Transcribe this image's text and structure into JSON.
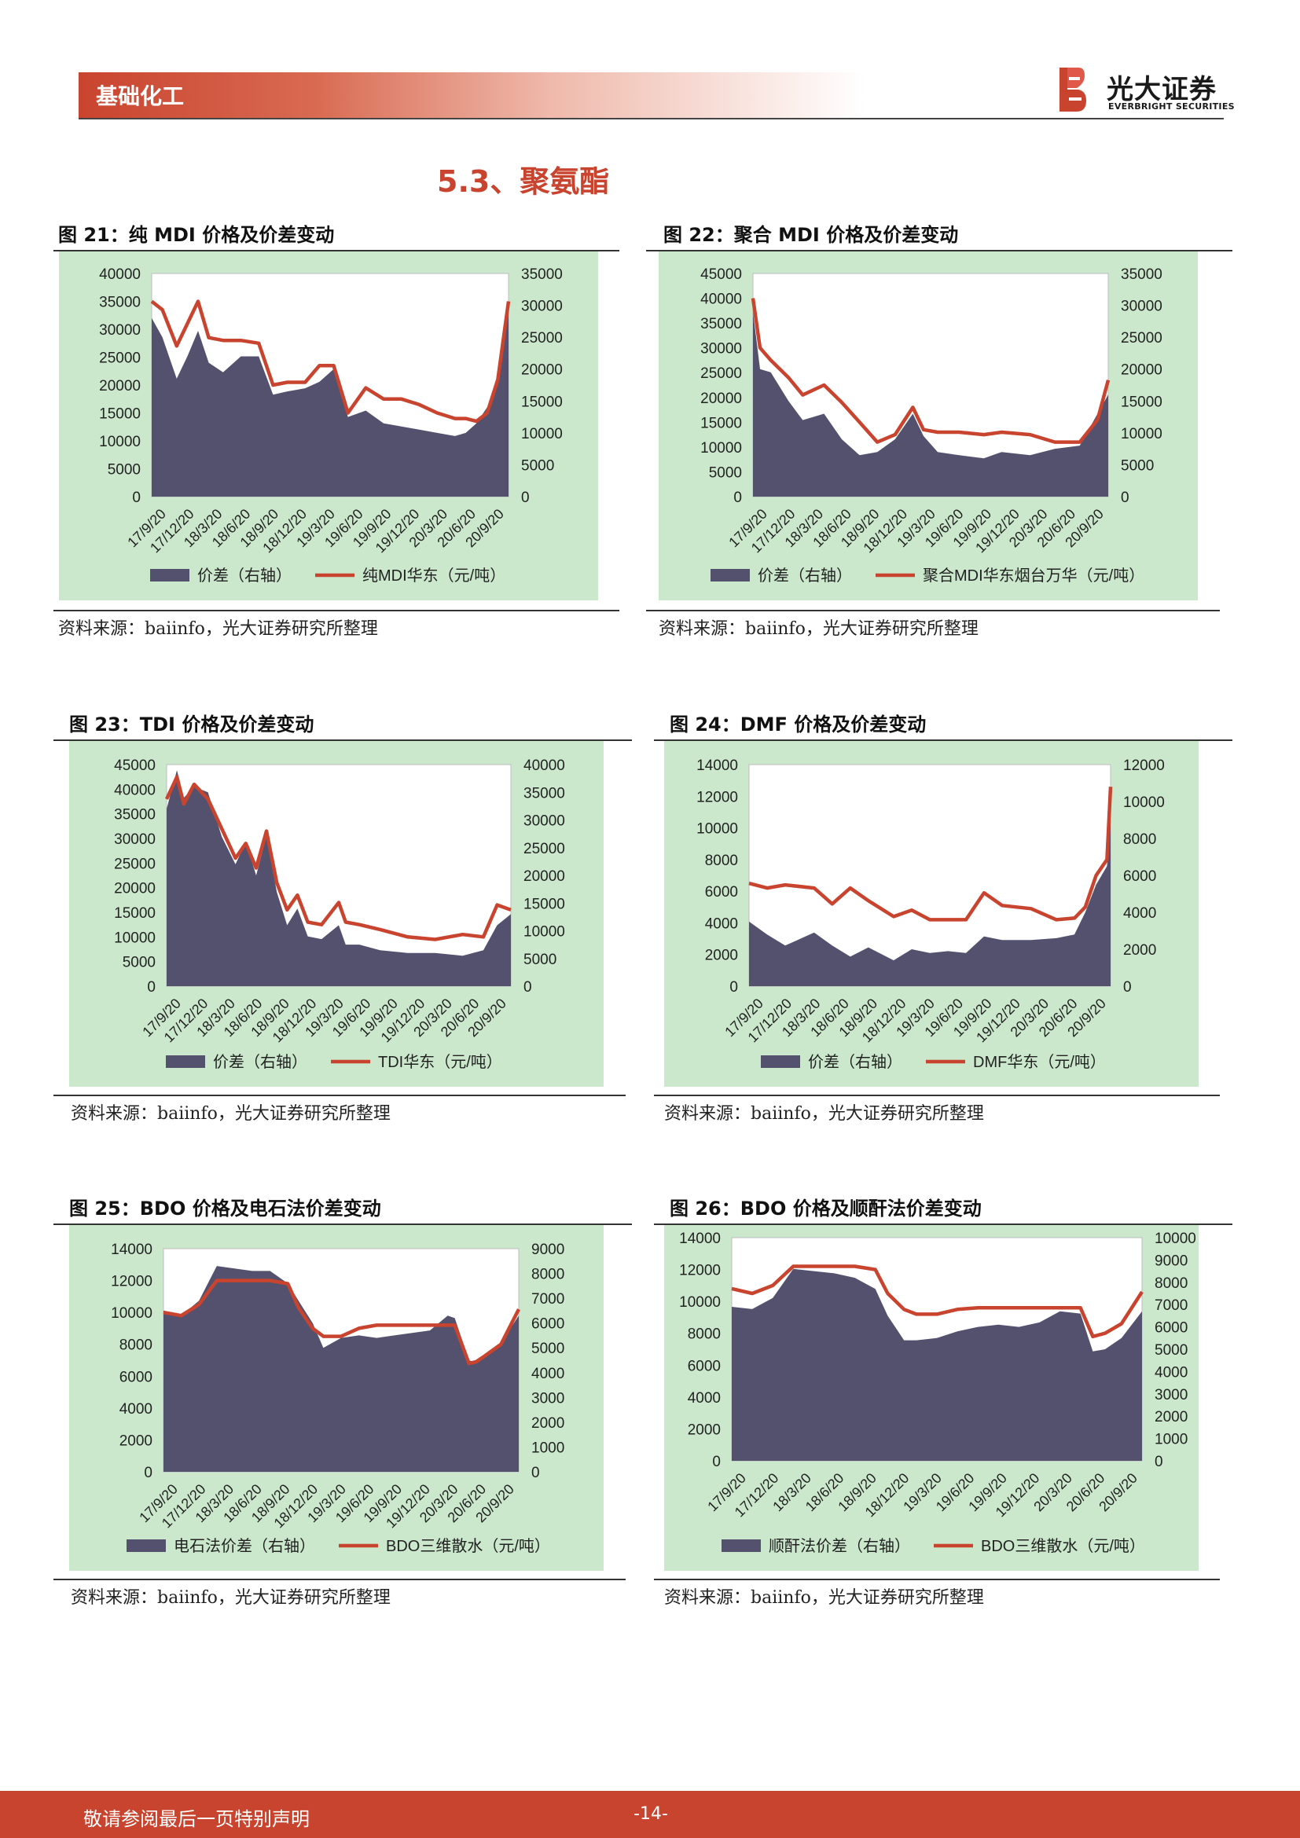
{
  "header": {
    "section": "基础化工",
    "brand_cn": "光大证券",
    "brand_en": "EVERBRIGHT SECURITIES"
  },
  "section_title": "5.3、聚氨酯",
  "source_text": "资料来源：baiinfo，光大证券研究所整理",
  "footer": {
    "disclaimer": "敬请参阅最后一页特别声明",
    "page": "-14-"
  },
  "colors": {
    "area": "#54516e",
    "line": "#c9442f",
    "panel": "#cbe8cd",
    "accent": "#c9442f"
  },
  "chart_data": [
    {
      "id": "fig21",
      "type": "area+line",
      "title": "图 21：纯 MDI 价格及价差变动",
      "x_ticks": [
        "17/9/20",
        "17/12/20",
        "18/3/20",
        "18/6/20",
        "18/9/20",
        "18/12/20",
        "19/3/20",
        "19/6/20",
        "19/9/20",
        "19/12/20",
        "20/3/20",
        "20/6/20",
        "20/9/20"
      ],
      "left_axis": {
        "ticks": [
          "0",
          "5000",
          "10000",
          "15000",
          "20000",
          "25000",
          "30000",
          "35000",
          "40000"
        ],
        "min": 0,
        "max": 40000
      },
      "right_axis": {
        "ticks": [
          "0",
          "5000",
          "10000",
          "15000",
          "20000",
          "25000",
          "30000",
          "35000"
        ],
        "min": 0,
        "max": 35000
      },
      "series": [
        {
          "name": "价差（右轴）",
          "axis": "right",
          "kind": "area",
          "t": [
            0,
            0.03,
            0.07,
            0.1,
            0.13,
            0.16,
            0.2,
            0.25,
            0.3,
            0.34,
            0.38,
            0.43,
            0.47,
            0.51,
            0.55,
            0.6,
            0.65,
            0.7,
            0.75,
            0.8,
            0.85,
            0.88,
            0.91,
            0.94,
            0.97,
            1.0
          ],
          "values": [
            28000,
            25000,
            18500,
            22000,
            26000,
            21000,
            19500,
            22000,
            22000,
            16000,
            16500,
            17000,
            18000,
            20000,
            12500,
            13500,
            11500,
            11000,
            10500,
            10000,
            9500,
            10000,
            11500,
            14000,
            18000,
            30000
          ]
        },
        {
          "name": "纯MDI华东（元/吨）",
          "axis": "left",
          "kind": "line",
          "t": [
            0,
            0.03,
            0.07,
            0.1,
            0.13,
            0.16,
            0.2,
            0.25,
            0.3,
            0.34,
            0.38,
            0.43,
            0.47,
            0.51,
            0.55,
            0.6,
            0.65,
            0.7,
            0.75,
            0.8,
            0.85,
            0.88,
            0.91,
            0.94,
            0.97,
            1.0
          ],
          "values": [
            35000,
            33500,
            27000,
            31000,
            35000,
            28500,
            28000,
            28000,
            27500,
            20000,
            20500,
            20500,
            23500,
            23500,
            15000,
            19500,
            17500,
            17500,
            16500,
            15000,
            14000,
            14000,
            13500,
            15000,
            21000,
            35000
          ]
        }
      ]
    },
    {
      "id": "fig22",
      "type": "area+line",
      "title": "图 22：聚合 MDI 价格及价差变动",
      "x_ticks": [
        "17/9/20",
        "17/12/20",
        "18/3/20",
        "18/6/20",
        "18/9/20",
        "18/12/20",
        "19/3/20",
        "19/6/20",
        "19/9/20",
        "19/12/20",
        "20/3/20",
        "20/6/20",
        "20/9/20"
      ],
      "left_axis": {
        "ticks": [
          "0",
          "5000",
          "10000",
          "15000",
          "20000",
          "25000",
          "30000",
          "35000",
          "40000",
          "45000"
        ],
        "min": 0,
        "max": 45000
      },
      "right_axis": {
        "ticks": [
          "0",
          "5000",
          "10000",
          "15000",
          "20000",
          "25000",
          "30000",
          "35000"
        ],
        "min": 0,
        "max": 35000
      },
      "series": [
        {
          "name": "价差（右轴）",
          "axis": "right",
          "kind": "area",
          "t": [
            0,
            0.02,
            0.05,
            0.1,
            0.14,
            0.2,
            0.25,
            0.3,
            0.35,
            0.4,
            0.45,
            0.48,
            0.52,
            0.58,
            0.65,
            0.7,
            0.78,
            0.85,
            0.92,
            0.97,
            1.0
          ],
          "values": [
            29000,
            20000,
            19500,
            15000,
            12000,
            13000,
            9000,
            6500,
            7000,
            9000,
            13000,
            9500,
            7000,
            6500,
            6000,
            7000,
            6500,
            7500,
            8000,
            13000,
            16000
          ]
        },
        {
          "name": "聚合MDI华东烟台万华（元/吨）",
          "axis": "left",
          "kind": "line",
          "t": [
            0,
            0.02,
            0.05,
            0.1,
            0.14,
            0.2,
            0.25,
            0.3,
            0.35,
            0.4,
            0.45,
            0.48,
            0.52,
            0.58,
            0.65,
            0.7,
            0.78,
            0.85,
            0.92,
            0.97,
            1.0
          ],
          "values": [
            40000,
            30000,
            27500,
            24000,
            20500,
            22500,
            19000,
            15000,
            11000,
            12500,
            18000,
            13500,
            13000,
            13000,
            12500,
            13000,
            12500,
            11000,
            11000,
            15500,
            23500
          ]
        }
      ]
    },
    {
      "id": "fig23",
      "type": "area+line",
      "title": "图 23：TDI 价格及价差变动",
      "x_ticks": [
        "17/9/20",
        "17/12/20",
        "18/3/20",
        "18/6/20",
        "18/9/20",
        "18/12/20",
        "19/3/20",
        "19/6/20",
        "19/9/20",
        "19/12/20",
        "20/3/20",
        "20/6/20",
        "20/9/20"
      ],
      "left_axis": {
        "ticks": [
          "0",
          "5000",
          "10000",
          "15000",
          "20000",
          "25000",
          "30000",
          "35000",
          "40000",
          "45000"
        ],
        "min": 0,
        "max": 45000
      },
      "right_axis": {
        "ticks": [
          "0",
          "5000",
          "10000",
          "15000",
          "20000",
          "25000",
          "30000",
          "35000",
          "40000"
        ],
        "min": 0,
        "max": 40000
      },
      "series": [
        {
          "name": "价差（右轴）",
          "axis": "right",
          "kind": "area",
          "t": [
            0,
            0.03,
            0.05,
            0.08,
            0.12,
            0.16,
            0.2,
            0.23,
            0.26,
            0.29,
            0.32,
            0.35,
            0.38,
            0.41,
            0.45,
            0.5,
            0.52,
            0.56,
            0.62,
            0.7,
            0.78,
            0.86,
            0.92,
            0.96,
            1.0
          ],
          "values": [
            32000,
            39000,
            34000,
            36000,
            35000,
            27000,
            22000,
            26000,
            20000,
            27000,
            17000,
            11000,
            14000,
            9000,
            8500,
            11000,
            7500,
            7500,
            6500,
            6000,
            6000,
            5500,
            6500,
            11000,
            13000
          ]
        },
        {
          "name": "TDI华东（元/吨）",
          "axis": "left",
          "kind": "line",
          "t": [
            0,
            0.03,
            0.05,
            0.08,
            0.12,
            0.16,
            0.2,
            0.23,
            0.26,
            0.29,
            0.32,
            0.35,
            0.38,
            0.41,
            0.45,
            0.5,
            0.52,
            0.56,
            0.62,
            0.7,
            0.78,
            0.86,
            0.92,
            0.96,
            1.0
          ],
          "values": [
            38000,
            42500,
            37000,
            41000,
            38000,
            32000,
            26000,
            29000,
            24000,
            31500,
            21000,
            15500,
            18500,
            13000,
            12500,
            17000,
            13000,
            12500,
            11500,
            10000,
            9500,
            10500,
            10000,
            16500,
            15500
          ]
        }
      ]
    },
    {
      "id": "fig24",
      "type": "area+line",
      "title": "图 24：DMF 价格及价差变动",
      "x_ticks": [
        "17/9/20",
        "17/12/20",
        "18/3/20",
        "18/6/20",
        "18/9/20",
        "18/12/20",
        "19/3/20",
        "19/6/20",
        "19/9/20",
        "19/12/20",
        "20/3/20",
        "20/6/20",
        "20/9/20"
      ],
      "left_axis": {
        "ticks": [
          "0",
          "2000",
          "4000",
          "6000",
          "8000",
          "10000",
          "12000",
          "14000"
        ],
        "min": 0,
        "max": 14000
      },
      "right_axis": {
        "ticks": [
          "0",
          "2000",
          "4000",
          "6000",
          "8000",
          "10000",
          "12000"
        ],
        "min": 0,
        "max": 12000
      },
      "series": [
        {
          "name": "价差（右轴）",
          "axis": "right",
          "kind": "area",
          "t": [
            0,
            0.05,
            0.1,
            0.18,
            0.23,
            0.28,
            0.33,
            0.4,
            0.45,
            0.5,
            0.55,
            0.6,
            0.65,
            0.7,
            0.78,
            0.85,
            0.9,
            0.93,
            0.96,
            0.99,
            1.0
          ],
          "values": [
            3500,
            2800,
            2200,
            2900,
            2200,
            1600,
            2100,
            1400,
            2000,
            1800,
            1900,
            1800,
            2700,
            2500,
            2500,
            2600,
            2800,
            4000,
            5500,
            6500,
            9000
          ]
        },
        {
          "name": "DMF华东（元/吨）",
          "axis": "left",
          "kind": "line",
          "t": [
            0,
            0.05,
            0.1,
            0.18,
            0.23,
            0.28,
            0.33,
            0.4,
            0.45,
            0.5,
            0.55,
            0.6,
            0.65,
            0.7,
            0.78,
            0.85,
            0.9,
            0.93,
            0.96,
            0.99,
            1.0
          ],
          "values": [
            6500,
            6200,
            6400,
            6200,
            5200,
            6200,
            5400,
            4400,
            4800,
            4200,
            4200,
            4200,
            5900,
            5100,
            4900,
            4200,
            4300,
            5000,
            7000,
            8000,
            12600
          ]
        }
      ]
    },
    {
      "id": "fig25",
      "type": "area+line",
      "title": "图 25：BDO 价格及电石法价差变动",
      "x_ticks": [
        "17/9/20",
        "17/12/20",
        "18/3/20",
        "18/6/20",
        "18/9/20",
        "18/12/20",
        "19/3/20",
        "19/6/20",
        "19/9/20",
        "19/12/20",
        "20/3/20",
        "20/6/20",
        "20/9/20"
      ],
      "left_axis": {
        "ticks": [
          "0",
          "2000",
          "4000",
          "6000",
          "8000",
          "10000",
          "12000",
          "14000"
        ],
        "min": 0,
        "max": 14000
      },
      "right_axis": {
        "ticks": [
          "0",
          "1000",
          "2000",
          "3000",
          "4000",
          "5000",
          "6000",
          "7000",
          "8000",
          "9000"
        ],
        "min": 0,
        "max": 9000
      },
      "series": [
        {
          "name": "电石法价差（右轴）",
          "axis": "right",
          "kind": "area",
          "t": [
            0,
            0.05,
            0.1,
            0.15,
            0.2,
            0.25,
            0.3,
            0.35,
            0.38,
            0.42,
            0.45,
            0.5,
            0.55,
            0.6,
            0.65,
            0.7,
            0.75,
            0.8,
            0.82,
            0.86,
            0.88,
            0.9,
            0.95,
            1.0
          ],
          "values": [
            6500,
            6300,
            6900,
            8300,
            8200,
            8100,
            8100,
            7600,
            6900,
            6000,
            5000,
            5400,
            5500,
            5400,
            5500,
            5600,
            5700,
            6300,
            6200,
            4500,
            4400,
            4700,
            5200,
            6300
          ]
        },
        {
          "name": "BDO三维散水（元/吨）",
          "axis": "left",
          "kind": "line",
          "t": [
            0,
            0.05,
            0.1,
            0.15,
            0.2,
            0.25,
            0.3,
            0.35,
            0.38,
            0.42,
            0.45,
            0.5,
            0.55,
            0.6,
            0.65,
            0.7,
            0.75,
            0.8,
            0.82,
            0.86,
            0.88,
            0.9,
            0.95,
            1.0
          ],
          "values": [
            10000,
            9800,
            10500,
            12000,
            12000,
            12000,
            12000,
            11800,
            10300,
            9000,
            8500,
            8500,
            9000,
            9200,
            9200,
            9200,
            9200,
            9200,
            9200,
            6800,
            6900,
            7200,
            8000,
            10200
          ]
        }
      ]
    },
    {
      "id": "fig26",
      "type": "area+line",
      "title": "图 26：BDO 价格及顺酐法价差变动",
      "x_ticks": [
        "17/9/20",
        "17/12/20",
        "18/3/20",
        "18/6/20",
        "18/9/20",
        "18/12/20",
        "19/3/20",
        "19/6/20",
        "19/9/20",
        "19/12/20",
        "20/3/20",
        "20/6/20",
        "20/9/20"
      ],
      "left_axis": {
        "ticks": [
          "0",
          "2000",
          "4000",
          "6000",
          "8000",
          "10000",
          "12000",
          "14000"
        ],
        "min": 0,
        "max": 14000
      },
      "right_axis": {
        "ticks": [
          "0",
          "1000",
          "2000",
          "3000",
          "4000",
          "5000",
          "6000",
          "7000",
          "8000",
          "9000",
          "10000"
        ],
        "min": 0,
        "max": 10000
      },
      "series": [
        {
          "name": "顺酐法价差（右轴）",
          "axis": "right",
          "kind": "area",
          "t": [
            0,
            0.05,
            0.1,
            0.15,
            0.2,
            0.25,
            0.3,
            0.35,
            0.38,
            0.42,
            0.45,
            0.5,
            0.55,
            0.6,
            0.65,
            0.7,
            0.75,
            0.8,
            0.85,
            0.88,
            0.91,
            0.95,
            1.0
          ],
          "values": [
            6900,
            6800,
            7300,
            8600,
            8500,
            8400,
            8200,
            7700,
            6500,
            5400,
            5400,
            5500,
            5800,
            6000,
            6100,
            6000,
            6200,
            6700,
            6600,
            4900,
            5000,
            5500,
            6700
          ]
        },
        {
          "name": "BDO三维散水（元/吨）",
          "axis": "left",
          "kind": "line",
          "t": [
            0,
            0.05,
            0.1,
            0.15,
            0.2,
            0.25,
            0.3,
            0.35,
            0.38,
            0.42,
            0.45,
            0.5,
            0.55,
            0.6,
            0.65,
            0.7,
            0.75,
            0.8,
            0.85,
            0.88,
            0.91,
            0.95,
            1.0
          ],
          "values": [
            10800,
            10500,
            11000,
            12200,
            12200,
            12200,
            12200,
            12000,
            10500,
            9500,
            9200,
            9200,
            9500,
            9600,
            9600,
            9600,
            9600,
            9600,
            9600,
            7800,
            8000,
            8600,
            10600
          ]
        }
      ]
    }
  ]
}
